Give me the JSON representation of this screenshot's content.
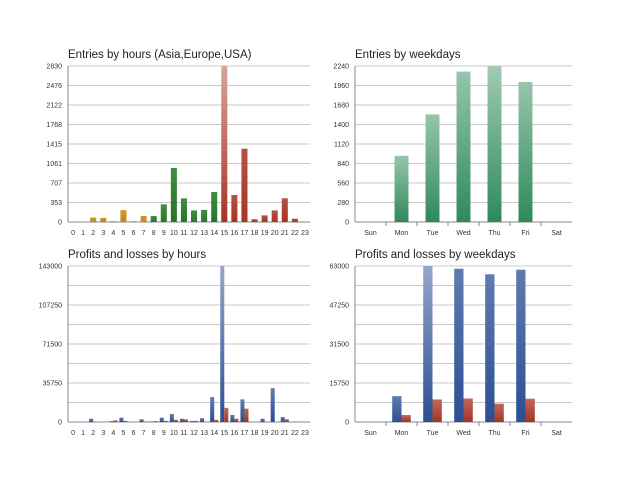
{
  "chart_data": [
    {
      "id": "entries-hours",
      "type": "bar",
      "title": "Entries by hours (Asia,Europe,USA)",
      "categories": [
        "0",
        "1",
        "2",
        "3",
        "4",
        "5",
        "6",
        "7",
        "8",
        "9",
        "10",
        "11",
        "12",
        "13",
        "14",
        "15",
        "16",
        "17",
        "18",
        "19",
        "20",
        "21",
        "22",
        "23"
      ],
      "values": [
        0,
        0,
        80,
        75,
        15,
        215,
        15,
        110,
        110,
        320,
        980,
        430,
        210,
        220,
        545,
        2830,
        490,
        1330,
        50,
        120,
        210,
        430,
        60,
        0
      ],
      "session_colors": [
        "#c8860e",
        "#c8860e",
        "#c8860e",
        "#c8860e",
        "#c8860e",
        "#c8860e",
        "#c8860e",
        "#c8860e",
        "#237823",
        "#237823",
        "#237823",
        "#237823",
        "#237823",
        "#237823",
        "#237823",
        "#a83424",
        "#a83424",
        "#a83424",
        "#a83424",
        "#a83424",
        "#a83424",
        "#a83424",
        "#a83424",
        "#a83424"
      ],
      "yticks": [
        "0",
        "353",
        "707",
        "1061",
        "1415",
        "1768",
        "2122",
        "2476",
        "2830"
      ],
      "ylim": [
        0,
        2830
      ],
      "grid": true
    },
    {
      "id": "entries-weekdays",
      "type": "bar",
      "title": "Entries by weekdays",
      "categories": [
        "Sun",
        "Mon",
        "Tue",
        "Wed",
        "Thu",
        "Fri",
        "Sat"
      ],
      "values": [
        0,
        950,
        1545,
        2160,
        2240,
        2010,
        0
      ],
      "color": "#2e8a5a",
      "yticks": [
        "0",
        "280",
        "560",
        "840",
        "1120",
        "1400",
        "1680",
        "1960",
        "2240"
      ],
      "ylim": [
        0,
        2240
      ],
      "grid": true
    },
    {
      "id": "pl-hours",
      "type": "bar",
      "title": "Profits and losses by hours",
      "categories": [
        "0",
        "1",
        "2",
        "3",
        "4",
        "5",
        "6",
        "7",
        "8",
        "9",
        "10",
        "11",
        "12",
        "13",
        "14",
        "15",
        "16",
        "17",
        "18",
        "19",
        "20",
        "21",
        "22",
        "23"
      ],
      "series": [
        {
          "name": "Profits",
          "color": "#2b4f94",
          "values": [
            0,
            0,
            3000,
            0,
            800,
            4000,
            0,
            2500,
            500,
            4000,
            7300,
            3000,
            1000,
            3500,
            22800,
            143000,
            6500,
            20700,
            0,
            3000,
            31000,
            4500,
            0,
            0
          ]
        },
        {
          "name": "Losses",
          "color": "#a83424",
          "values": [
            0,
            0,
            0,
            0,
            1500,
            1000,
            0,
            500,
            800,
            1000,
            2000,
            2500,
            1000,
            0,
            2000,
            13000,
            3000,
            12200,
            0,
            0,
            0,
            2500,
            300,
            0
          ]
        }
      ],
      "yticks": [
        "0",
        "35750",
        "71500",
        "107250",
        "143000"
      ],
      "ylim": [
        0,
        143000
      ],
      "grid": true
    },
    {
      "id": "pl-weekdays",
      "type": "bar",
      "title": "Profits and losses by weekdays",
      "categories": [
        "Sun",
        "Mon",
        "Tue",
        "Wed",
        "Thu",
        "Fri",
        "Sat"
      ],
      "series": [
        {
          "name": "Profits",
          "color": "#2b4f94",
          "values": [
            0,
            10450,
            63000,
            61900,
            59650,
            61500,
            0
          ]
        },
        {
          "name": "Losses",
          "color": "#a83424",
          "values": [
            0,
            2800,
            9100,
            9500,
            7400,
            9400,
            0
          ]
        }
      ],
      "yticks": [
        "0",
        "15750",
        "31500",
        "47250",
        "63000"
      ],
      "ylim": [
        0,
        63000
      ],
      "grid": true
    }
  ]
}
